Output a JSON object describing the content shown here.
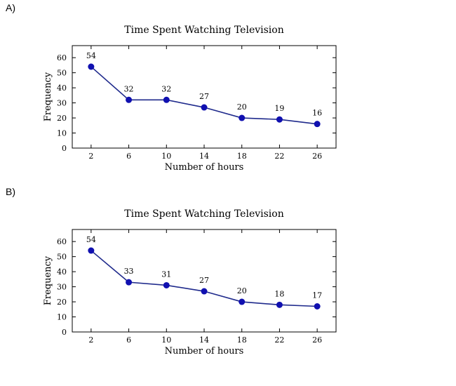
{
  "options": [
    {
      "letter": "A)",
      "chart_data": {
        "type": "line",
        "title": "Time Spent Watching Television",
        "xlabel": "Number of hours",
        "ylabel": "Frequency",
        "x": [
          2,
          6,
          10,
          14,
          18,
          22,
          26
        ],
        "x_tick_labels": [
          "2",
          "6",
          "10",
          "14",
          "18",
          "22",
          "26"
        ],
        "values": [
          54,
          32,
          32,
          27,
          20,
          19,
          16
        ],
        "data_labels": [
          "54",
          "32",
          "32",
          "27",
          "20",
          "19",
          "16"
        ],
        "xlim": [
          0,
          28
        ],
        "ylim": [
          0,
          68
        ],
        "y_ticks": [
          0,
          10,
          20,
          30,
          40,
          50,
          60
        ],
        "y_tick_labels": [
          "0",
          "10",
          "20",
          "30",
          "40",
          "50",
          "60"
        ],
        "grid": false,
        "line_color": "#1f2a8c",
        "marker_color": "#1010b0"
      }
    },
    {
      "letter": "B)",
      "chart_data": {
        "type": "line",
        "title": "Time Spent Watching Television",
        "xlabel": "Number of hours",
        "ylabel": "Frequency",
        "x": [
          2,
          6,
          10,
          14,
          18,
          22,
          26
        ],
        "x_tick_labels": [
          "2",
          "6",
          "10",
          "14",
          "18",
          "22",
          "26"
        ],
        "values": [
          54,
          33,
          31,
          27,
          20,
          18,
          17
        ],
        "data_labels": [
          "54",
          "33",
          "31",
          "27",
          "20",
          "18",
          "17"
        ],
        "xlim": [
          0,
          28
        ],
        "ylim": [
          0,
          68
        ],
        "y_ticks": [
          0,
          10,
          20,
          30,
          40,
          50,
          60
        ],
        "y_tick_labels": [
          "0",
          "10",
          "20",
          "30",
          "40",
          "50",
          "60"
        ],
        "grid": false,
        "line_color": "#1f2a8c",
        "marker_color": "#1010b0"
      }
    }
  ]
}
